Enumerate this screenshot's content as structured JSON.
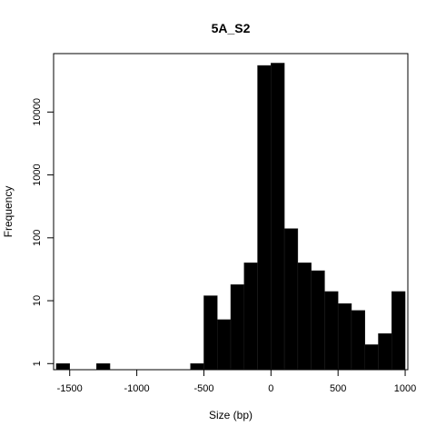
{
  "chart_data": {
    "type": "bar",
    "title": "5A_S2",
    "xlabel": "Size (bp)",
    "ylabel": "Frequency",
    "y_scale": "log10",
    "xlim": [
      -1620,
      1020
    ],
    "ylim": [
      0.8,
      85000
    ],
    "x_ticks": [
      {
        "value": -1500,
        "label": "-1500"
      },
      {
        "value": -1000,
        "label": "-1000"
      },
      {
        "value": -500,
        "label": "-500"
      },
      {
        "value": 0,
        "label": "0"
      },
      {
        "value": 500,
        "label": "500"
      },
      {
        "value": 1000,
        "label": "1000"
      }
    ],
    "y_ticks": [
      {
        "value": 1,
        "label": "1"
      },
      {
        "value": 10,
        "label": "10"
      },
      {
        "value": 100,
        "label": "100"
      },
      {
        "value": 1000,
        "label": "1000"
      },
      {
        "value": 10000,
        "label": "10000"
      }
    ],
    "bins": [
      {
        "start": -1600,
        "end": -1500,
        "count": 1
      },
      {
        "start": -1300,
        "end": -1200,
        "count": 1
      },
      {
        "start": -600,
        "end": -500,
        "count": 1
      },
      {
        "start": -500,
        "end": -400,
        "count": 12
      },
      {
        "start": -400,
        "end": -300,
        "count": 5
      },
      {
        "start": -300,
        "end": -200,
        "count": 18
      },
      {
        "start": -200,
        "end": -100,
        "count": 40
      },
      {
        "start": -100,
        "end": 0,
        "count": 55000
      },
      {
        "start": 0,
        "end": 100,
        "count": 60000
      },
      {
        "start": 100,
        "end": 200,
        "count": 140
      },
      {
        "start": 200,
        "end": 300,
        "count": 40
      },
      {
        "start": 300,
        "end": 400,
        "count": 30
      },
      {
        "start": 400,
        "end": 500,
        "count": 14
      },
      {
        "start": 500,
        "end": 600,
        "count": 9
      },
      {
        "start": 600,
        "end": 700,
        "count": 7
      },
      {
        "start": 700,
        "end": 800,
        "count": 2
      },
      {
        "start": 800,
        "end": 900,
        "count": 3
      },
      {
        "start": 900,
        "end": 1000,
        "count": 14
      }
    ],
    "grid": false,
    "legend": "none",
    "bar_color": "#000000"
  }
}
